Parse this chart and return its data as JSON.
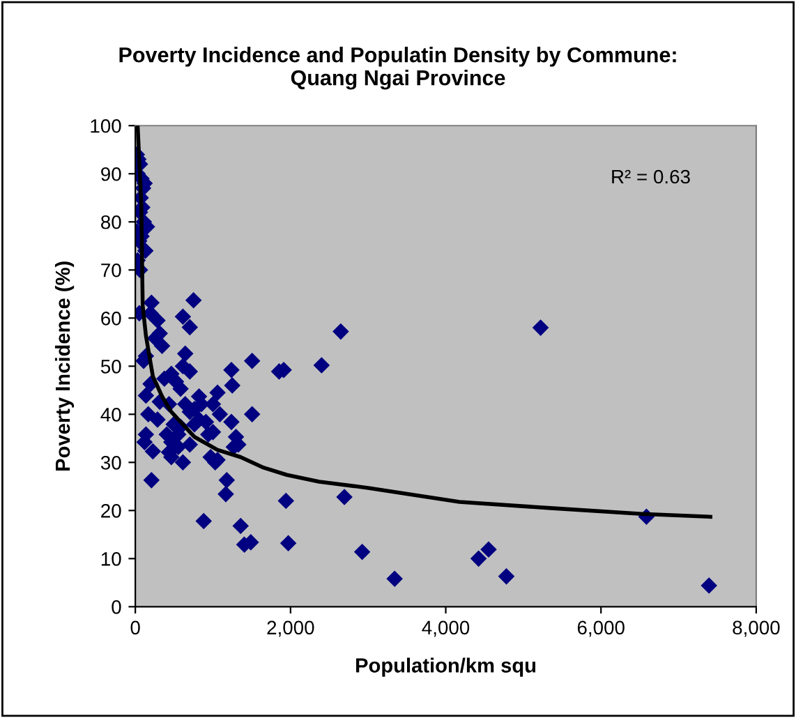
{
  "chart_data": {
    "type": "scatter",
    "title": "Poverty Incidence and Populatin Density by Commune:\nQuang Ngai Province",
    "xlabel": "Population/km squ",
    "ylabel": "Poverty Incidence (%)",
    "annotations": [
      "R² = 0.63"
    ],
    "xlim": [
      0,
      8000
    ],
    "ylim": [
      0,
      100
    ],
    "xticks": [
      0,
      {
        "value": 2000,
        "label": "2,000"
      },
      {
        "value": 4000,
        "label": "4,000"
      },
      {
        "value": 6000,
        "label": "6,000"
      },
      {
        "value": 8000,
        "label": "8,000"
      }
    ],
    "yticks": [
      0,
      10,
      20,
      30,
      40,
      50,
      60,
      70,
      80,
      90,
      100
    ],
    "grid": false,
    "legend": false,
    "marker": "diamond",
    "series": [
      {
        "color": "#000080",
        "x": [
          20,
          40,
          60,
          30,
          80,
          100,
          70,
          120,
          90,
          60,
          110,
          150,
          20,
          80,
          50,
          130,
          30,
          60,
          2647,
          5222,
          2400,
          1912,
          1853,
          1941,
          2694,
          1971,
          2923,
          3341,
          4423,
          4552,
          4781,
          6586,
          7392,
          750,
          1505,
          1505,
          1238,
          1249,
          1178,
          1166,
          881,
          1357,
          1404,
          1488,
          208,
          613,
          702,
          208,
          196,
          51,
          286,
          315,
          256,
          345,
          137,
          107,
          643,
          613,
          464,
          702,
          196,
          137,
          375,
          524,
          583,
          821,
          1059,
          1000,
          851,
          315,
          434,
          643,
          762,
          167,
          286,
          494,
          702,
          821,
          1089,
          405,
          583,
          762,
          910,
          1238,
          137,
          119,
          464,
          553,
          940,
          1000,
          226,
          434,
          553,
          702,
          970,
          1059,
          1297,
          1327,
          1268,
          464,
          613,
          1029
        ],
        "values": [
          94,
          93,
          92,
          90,
          89,
          87,
          85,
          88,
          83,
          82,
          80,
          79,
          78,
          77,
          76,
          74,
          72,
          70,
          57.2,
          58.0,
          50.2,
          49.2,
          48.9,
          22.0,
          22.8,
          13.2,
          11.4,
          5.8,
          10.0,
          11.9,
          6.3,
          18.7,
          4.4,
          63.7,
          51.1,
          40,
          49.2,
          46,
          26.3,
          23.4,
          17.8,
          16.8,
          12.9,
          13.4,
          26.3,
          60.3,
          58.1,
          63.2,
          61,
          61,
          59.5,
          56.8,
          55.8,
          54.2,
          52.1,
          51.1,
          52.6,
          50,
          48.4,
          48.9,
          46.3,
          43.9,
          47.4,
          46.8,
          45.3,
          43.7,
          44.5,
          42.1,
          42.1,
          42.6,
          42.1,
          42.1,
          41.1,
          40,
          38.9,
          37.9,
          40.5,
          38.9,
          40,
          35.8,
          37.4,
          37.9,
          38.4,
          38.4,
          35.8,
          34.2,
          34.2,
          35.8,
          35.8,
          36.3,
          32.3,
          32.1,
          33.2,
          33.7,
          31.1,
          30.5,
          35.3,
          33.7,
          33.2,
          31.1,
          30,
          30
        ]
      },
      {
        "type": "line",
        "color": "#000000",
        "marker": "none",
        "x": [
          30,
          77,
          95,
          137,
          226,
          345,
          464,
          762,
          1059,
          1357,
          1654,
          1952,
          2368,
          3000,
          4176,
          5352,
          6528,
          7410
        ],
        "values": [
          100,
          83.7,
          62.6,
          56.3,
          47.9,
          43.7,
          40.5,
          35.3,
          32.6,
          31.1,
          28.9,
          27.4,
          26,
          24.7,
          21.8,
          20.5,
          19.3,
          18.7
        ]
      }
    ]
  }
}
